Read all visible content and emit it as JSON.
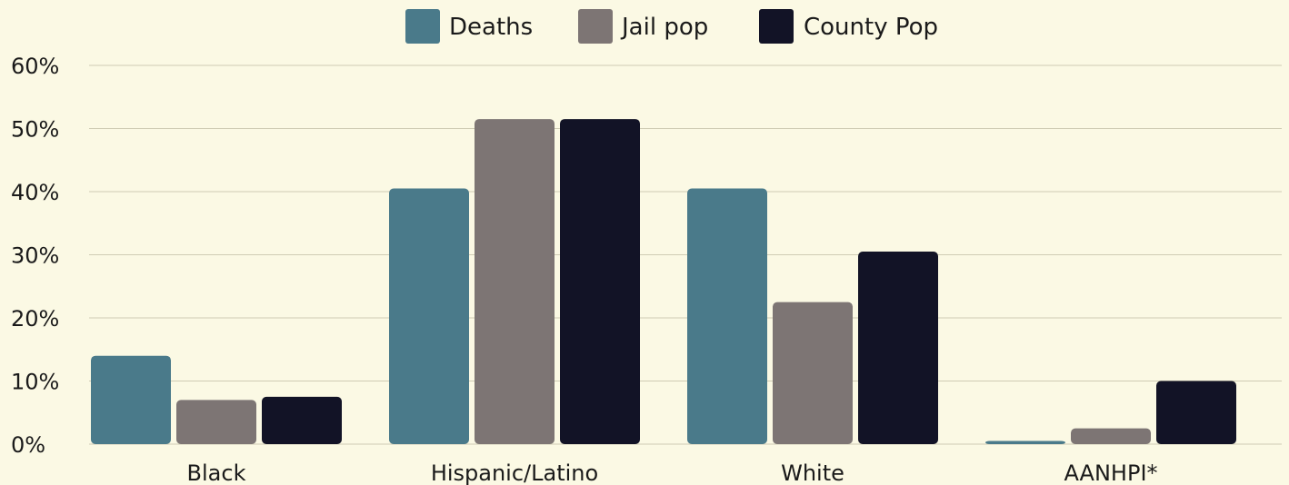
{
  "chart_data": {
    "type": "bar",
    "categories": [
      "Black",
      "Hispanic/Latino",
      "White",
      "AANHPI*"
    ],
    "series": [
      {
        "name": "Deaths",
        "values": [
          14,
          40.5,
          40.5,
          0.5
        ],
        "color": "#4a7a8a"
      },
      {
        "name": "Jail pop",
        "values": [
          7,
          51.5,
          22.5,
          2.5
        ],
        "color": "#7d7574"
      },
      {
        "name": "County Pop",
        "values": [
          7.5,
          51.5,
          30.5,
          10
        ],
        "color": "#121326"
      }
    ],
    "ylim": [
      0,
      60
    ],
    "yticks": [
      "0%",
      "10%",
      "20%",
      "30%",
      "40%",
      "50%",
      "60%"
    ],
    "grid": true,
    "legend_position": "top-center",
    "title": "",
    "xlabel": "",
    "ylabel": ""
  }
}
